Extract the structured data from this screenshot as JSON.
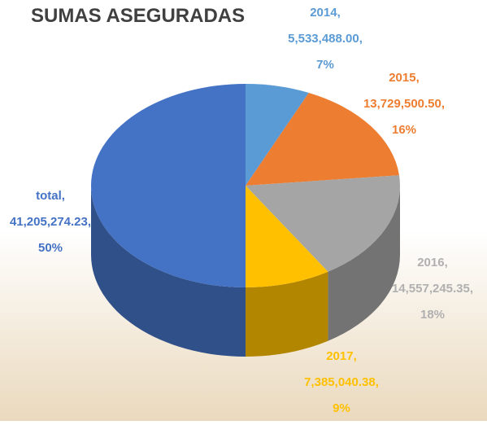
{
  "chart_data": {
    "type": "pie3d",
    "title": "SUMAS ASEGURADAS",
    "categories": [
      "2014",
      "2015",
      "2016",
      "2017",
      "total"
    ],
    "values": [
      5533488.0,
      13729500.5,
      14557245.35,
      7385040.38,
      41205274.23
    ],
    "value_labels": [
      "5,533,488.00",
      "13,729,500.50",
      "14,557,245.35",
      "7,385,040.38",
      "41,205,274.23"
    ],
    "percentages": [
      7,
      16,
      18,
      9,
      50
    ],
    "percent_labels": [
      "7%",
      "16%",
      "18%",
      "9%",
      "50%"
    ],
    "label_separator": ",",
    "colors": [
      "#5b9bd5",
      "#ed7d31",
      "#a5a5a5",
      "#ffc000",
      "#4472c4"
    ],
    "label_colors": [
      "#5b9bd5",
      "#ed7d31",
      "#b0b0b0",
      "#ffc000",
      "#4472c4"
    ]
  }
}
